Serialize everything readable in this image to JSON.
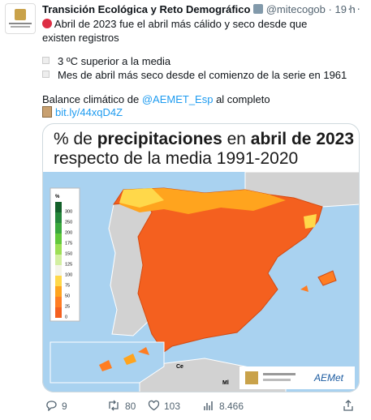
{
  "header": {
    "name": "Transición Ecológica y Reto Demográfico",
    "handle": "@mitecogob",
    "time": "19 h"
  },
  "tweet": {
    "text": "Abril de 2023 fue el abril más cálido y seco desde que existen registros",
    "bullets": [
      "3 ºC superior a la media",
      "Mes de abril más seco desde el comienzo de la serie en 1961"
    ],
    "balance": [
      "Balance climático de ",
      "@AEMET_Esp",
      " al completo"
    ],
    "link": "bit.ly/44xqD4Z"
  },
  "card": {
    "title_line1": [
      "% de ",
      "precipitaciones",
      " en ",
      "abril de 2023"
    ],
    "title_line2": "respecto de la media 1991-2020",
    "legend_unit": "%",
    "legend": [
      {
        "label": "300",
        "color": "#14602a"
      },
      {
        "label": "250",
        "color": "#25873a"
      },
      {
        "label": "200",
        "color": "#3aa83c"
      },
      {
        "label": "175",
        "color": "#62c83a"
      },
      {
        "label": "150",
        "color": "#9ddf55"
      },
      {
        "label": "125",
        "color": "#d3efa1"
      },
      {
        "label": "100",
        "color": "#f4f4e8"
      },
      {
        "label": "75",
        "color": "#ffd84a"
      },
      {
        "label": "50",
        "color": "#ffa41e"
      },
      {
        "label": "25",
        "color": "#ff7d22"
      },
      {
        "label": "0",
        "color": "#f4601f"
      }
    ],
    "map_labels": [
      "Ce",
      "Ml"
    ],
    "logo": "AEMet"
  },
  "actions": {
    "replies": "9",
    "retweets": "80",
    "likes": "103",
    "views": "8.466"
  }
}
